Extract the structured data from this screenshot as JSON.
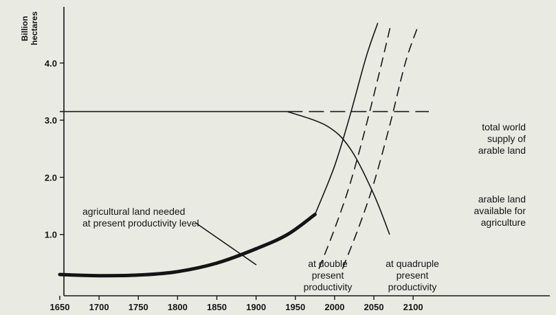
{
  "chart_data": {
    "type": "line",
    "title": "",
    "xlabel": "",
    "ylabel_lines": [
      "Billion",
      "hectares"
    ],
    "xlim": [
      1650,
      2120
    ],
    "ylim": [
      0,
      5
    ],
    "x_ticks": [
      "1650",
      "1700",
      "1750",
      "1800",
      "1850",
      "1900",
      "1950",
      "2000",
      "2050",
      "2100"
    ],
    "y_ticks": [
      "1.0",
      "2.0",
      "3.0",
      "4.0"
    ],
    "grid": false,
    "series": [
      {
        "name": "agricultural land needed at present productivity level",
        "x": [
          1650,
          1700,
          1750,
          1800,
          1850,
          1900,
          1940,
          1975,
          2000,
          2020,
          2040,
          2055
        ],
        "y": [
          0.3,
          0.28,
          0.29,
          0.35,
          0.5,
          0.75,
          1.0,
          1.35,
          2.2,
          3.1,
          4.1,
          4.7
        ],
        "style": "solid"
      },
      {
        "name": "at double present productivity",
        "x": [
          1980,
          2000,
          2020,
          2040,
          2060,
          2072
        ],
        "y": [
          0.4,
          1.1,
          1.9,
          2.9,
          4.0,
          4.7
        ],
        "style": "dashed"
      },
      {
        "name": "at quadruple present productivity",
        "x": [
          2010,
          2030,
          2050,
          2070,
          2090,
          2105
        ],
        "y": [
          0.4,
          1.1,
          1.9,
          2.9,
          4.0,
          4.6
        ],
        "style": "dashed"
      },
      {
        "name": "total world supply of arable land",
        "x": [
          1650,
          1940,
          2120
        ],
        "y": [
          3.15,
          3.15,
          3.15
        ],
        "style": "solid-then-dashed"
      },
      {
        "name": "arable land available for agriculture",
        "x": [
          1940,
          1990,
          2020,
          2050,
          2070
        ],
        "y": [
          3.15,
          2.9,
          2.5,
          1.7,
          1.0
        ],
        "style": "solid"
      }
    ],
    "annotations": [
      {
        "lines": [
          "agricultural land needed",
          "at present productivity level"
        ],
        "anchor": "start"
      },
      {
        "lines": [
          "total world",
          "supply of",
          "arable land"
        ],
        "anchor": "end"
      },
      {
        "lines": [
          "arable land",
          "available for",
          "agriculture"
        ],
        "anchor": "end"
      },
      {
        "lines": [
          "at double",
          "present",
          "productivity"
        ],
        "anchor": "middle"
      },
      {
        "lines": [
          "at quadruple",
          "present",
          "productivity"
        ],
        "anchor": "middle"
      }
    ]
  }
}
